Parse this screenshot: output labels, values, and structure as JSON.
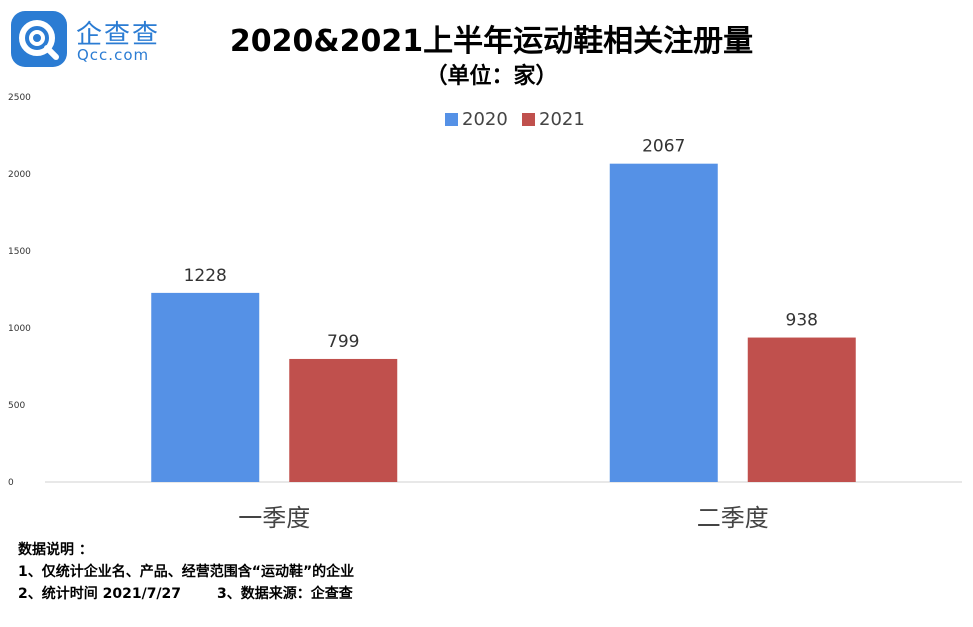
{
  "brand": {
    "name_cn": "企查查",
    "name_en": "Qcc.com",
    "color": "#2b7cd3"
  },
  "header": {
    "title": "2020&2021上半年运动鞋相关注册量",
    "subtitle": "（单位：家）"
  },
  "chart_data": {
    "type": "bar",
    "title": "2020&2021上半年运动鞋相关注册量",
    "subtitle": "（单位：家）",
    "categories": [
      "一季度",
      "二季度"
    ],
    "series": [
      {
        "name": "2020",
        "values": [
          1228,
          2067
        ],
        "color": "#5591e6"
      },
      {
        "name": "2021",
        "values": [
          799,
          938
        ],
        "color": "#c0504d"
      }
    ],
    "ylim": [
      0,
      2500
    ],
    "yticks": [
      "0",
      "500",
      "1000",
      "1500",
      "2000",
      "2500"
    ],
    "grid": false,
    "legend": "top-right",
    "data_labels": true
  },
  "notes": {
    "heading": "数据说明 ：",
    "line1": "1、仅统计企业名、产品、经营范围含“运动鞋”的企业",
    "line2a": "2、统计时间 2021/7/27",
    "line2b": "3、数据来源：企查查"
  }
}
